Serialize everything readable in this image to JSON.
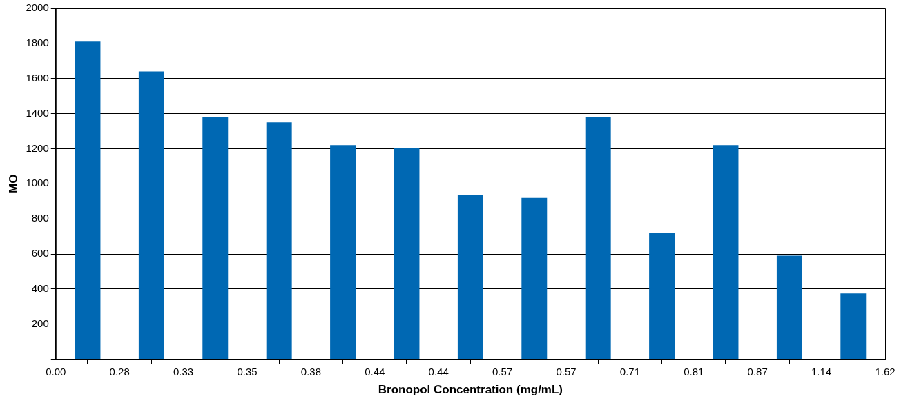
{
  "chart_data": {
    "type": "bar",
    "xlabel": "Bronopol Concentration (mg/mL)",
    "ylabel": "MO",
    "categories": [
      "0.00",
      "0.28",
      "0.33",
      "0.35",
      "0.38",
      "0.44",
      "0.44",
      "0.57",
      "0.57",
      "0.71",
      "0.81",
      "0.87",
      "1.14",
      "1.62"
    ],
    "values": [
      1810,
      1640,
      1380,
      1350,
      1220,
      1205,
      935,
      920,
      1380,
      720,
      1220,
      590,
      375,
      null
    ],
    "color": "#0068b3",
    "ylim": [
      0,
      2000
    ],
    "yticks": [
      {
        "value": 0,
        "label": null
      },
      200,
      400,
      600,
      800,
      1000,
      1200,
      1400,
      1600,
      1800,
      2000
    ],
    "grid": "y",
    "legend": false
  }
}
